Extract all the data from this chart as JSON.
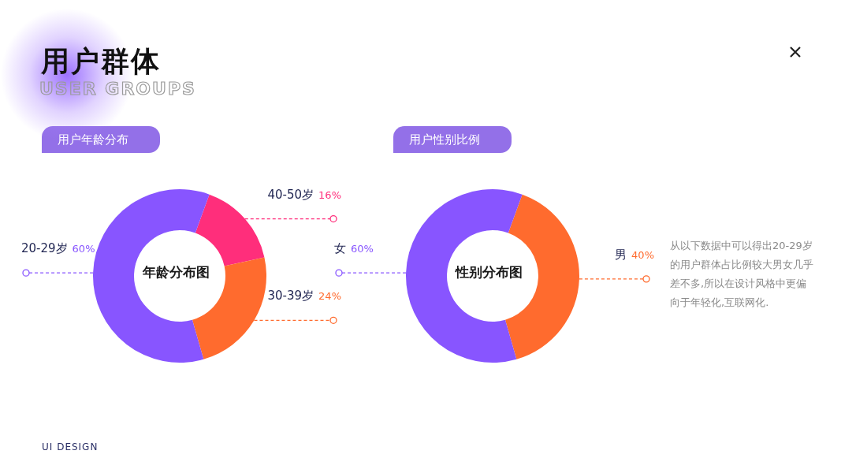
{
  "chart_data": [
    {
      "type": "donut",
      "title": "用户年龄分布",
      "annotations": [
        "年龄分布图"
      ],
      "categories": [
        "40-50岁",
        "30-39岁",
        "20-29岁"
      ],
      "values": [
        16,
        24,
        60
      ],
      "colors": [
        "#ff2e7b",
        "#ff6b2e",
        "#8855ff"
      ],
      "value_labels": [
        "16%",
        "24%",
        "60%"
      ]
    },
    {
      "type": "donut",
      "title": "用户性别比例",
      "annotations": [
        "性别分布图"
      ],
      "categories": [
        "男",
        "女"
      ],
      "values": [
        40,
        60
      ],
      "colors": [
        "#ff6b2e",
        "#8855ff"
      ],
      "value_labels": [
        "40%",
        "60%"
      ]
    },
    {
      "type": "other",
      "title": "用户群体",
      "subtitle": "USER GROUPS",
      "annotations": [
        "从以下数据中可以得出20-29岁的用户群体占比例较大男女几乎差不多,所以在设计风格中更偏向于年轻化,互联网化.",
        "UI DESIGN"
      ]
    }
  ]
}
